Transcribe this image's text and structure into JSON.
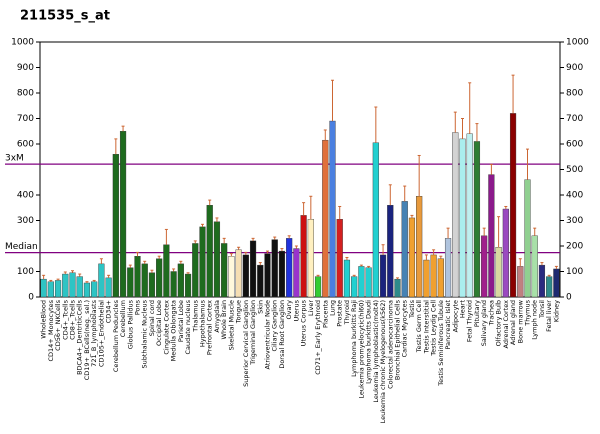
{
  "chart_data": {
    "type": "bar",
    "title": "211535_s_at",
    "categories": [
      "WholeBlood",
      "CD14+_Monocytes",
      "CD56+_NKCells",
      "CD4+_Tcells",
      "CD8+_Tcells",
      "BDCA4+_DentriticCells",
      "CD19+_BCells(neg._sel.)",
      "721_B_lymphoblasts",
      "CD105+_Endothelial",
      "CD34+",
      "Cerebellum Peduncles",
      "Cerebellum",
      "Globus Pallidus",
      "Pons",
      "Subthalamic Nucleus",
      "Spinal cord",
      "Occipital Lobe",
      "Cingulate Cortex",
      "Medulla Oblongata",
      "Parietal Lobe",
      "Caudate nucleus",
      "Thalamus",
      "Hypothalamus",
      "Prefrontal Cortex",
      "Amygdala",
      "Whole Brain",
      "Skeletal Muscle",
      "Tongue",
      "Superior Cervical Ganglion",
      "Trigeminal Ganglion",
      "Skin",
      "Atrioventricular Node",
      "Ciliary Ganglion",
      "Dorsal Root Ganglion",
      "Ovary",
      "Uterus",
      "Uterus Corpus",
      "Liver",
      "CD71+_Early Erythroid",
      "Placenta",
      "Lung",
      "Prostate",
      "Thyroid",
      "Lymphoma burkitts Raji",
      "Leukemia promyelocytic(hl60)",
      "Lymphoma burkitts Daudi",
      "Leukemia lymphoblastic(molt4)",
      "Leukemia chronic Myelogenous(k562)",
      "Colorectal adenocarcinoma",
      "Bronchial Epithelial Cells",
      "Cardiac Myocytes",
      "Testis",
      "Testis Germ Cell",
      "Testis Interstitial",
      "Testis Leydig Cell",
      "Testis Seminiferous Tubule",
      "Pancreatic Islet",
      "Adipocyte",
      "Heart",
      "Fetal Thyroid",
      "Pituitary",
      "Salivary gland",
      "Trachea",
      "Olfactory Bulb",
      "Adrenal Cortex",
      "Adrenal gland",
      "Bone marrow",
      "Thymus",
      "Lymph node",
      "Tonsil",
      "Fetal liver",
      "Kidney"
    ],
    "values": [
      70,
      60,
      65,
      90,
      95,
      80,
      55,
      60,
      130,
      75,
      560,
      650,
      115,
      160,
      130,
      95,
      150,
      205,
      100,
      130,
      90,
      210,
      275,
      360,
      295,
      210,
      160,
      185,
      165,
      220,
      125,
      170,
      225,
      180,
      230,
      190,
      320,
      305,
      80,
      615,
      690,
      305,
      145,
      80,
      120,
      115,
      605,
      165,
      360,
      70,
      375,
      310,
      395,
      145,
      165,
      150,
      230,
      645,
      620,
      640,
      610,
      240,
      480,
      195,
      345,
      720,
      120,
      460,
      240,
      125,
      80,
      110
    ],
    "errors": [
      15,
      5,
      5,
      8,
      8,
      10,
      5,
      5,
      20,
      10,
      60,
      20,
      10,
      15,
      10,
      10,
      10,
      60,
      10,
      10,
      5,
      10,
      10,
      20,
      15,
      20,
      10,
      10,
      10,
      10,
      10,
      10,
      10,
      10,
      10,
      10,
      50,
      90,
      5,
      40,
      160,
      50,
      10,
      5,
      5,
      5,
      140,
      40,
      80,
      5,
      60,
      10,
      160,
      20,
      20,
      10,
      40,
      80,
      80,
      200,
      70,
      30,
      40,
      120,
      10,
      150,
      30,
      120,
      30,
      10,
      5,
      10
    ],
    "colors": [
      "#2ec4c4",
      "#2ec4c4",
      "#2ec4c4",
      "#2ec4c4",
      "#2ec4c4",
      "#2ec4c4",
      "#2ec4c4",
      "#2ec4c4",
      "#2ec4c4",
      "#2ec4c4",
      "#1e6b1e",
      "#1e6b1e",
      "#1e6b1e",
      "#1e6b1e",
      "#1e6b1e",
      "#1e6b1e",
      "#1e6b1e",
      "#1e6b1e",
      "#1e6b1e",
      "#1e6b1e",
      "#1e6b1e",
      "#1e6b1e",
      "#1e6b1e",
      "#1e6b1e",
      "#1e6b1e",
      "#1e6b1e",
      "#fff8dc",
      "#f5deb3",
      "#111111",
      "#111111",
      "#111111",
      "#111111",
      "#111111",
      "#111111",
      "#2233dd",
      "#9933cc",
      "#cc1111",
      "#fff0c0",
      "#33cc33",
      "#e0703a",
      "#4a7fe0",
      "#d42020",
      "#22d0d0",
      "#22d0d0",
      "#22d0d0",
      "#22d0d0",
      "#22d0d0",
      "#1a237e",
      "#1a237e",
      "#2e8b8b",
      "#4682b4",
      "#f0a030",
      "#e89a3c",
      "#f0a030",
      "#f0a030",
      "#f0a030",
      "#b0c4de",
      "#d3d3d3",
      "#aaeeee",
      "#bfefef",
      "#2e7d32",
      "#a0208c",
      "#8b1a8b",
      "#d8d8a0",
      "#9a4ac0",
      "#8b0000",
      "#c08080",
      "#90d090",
      "#a8e0a8",
      "#2a2a80",
      "#2e8b8b",
      "#1e2a70"
    ],
    "error_color": "#cc6633",
    "ylim": [
      0,
      1000
    ],
    "yticks": [
      0,
      100,
      200,
      300,
      400,
      500,
      600,
      700,
      800,
      900,
      1000
    ],
    "yticks_left": [
      0,
      100,
      300,
      400,
      600,
      700,
      800,
      900,
      1000
    ],
    "reference_lines": [
      {
        "label": "3xM",
        "value": 521
      },
      {
        "label": "Median",
        "value": 174
      }
    ],
    "reference_color": "#800080"
  }
}
